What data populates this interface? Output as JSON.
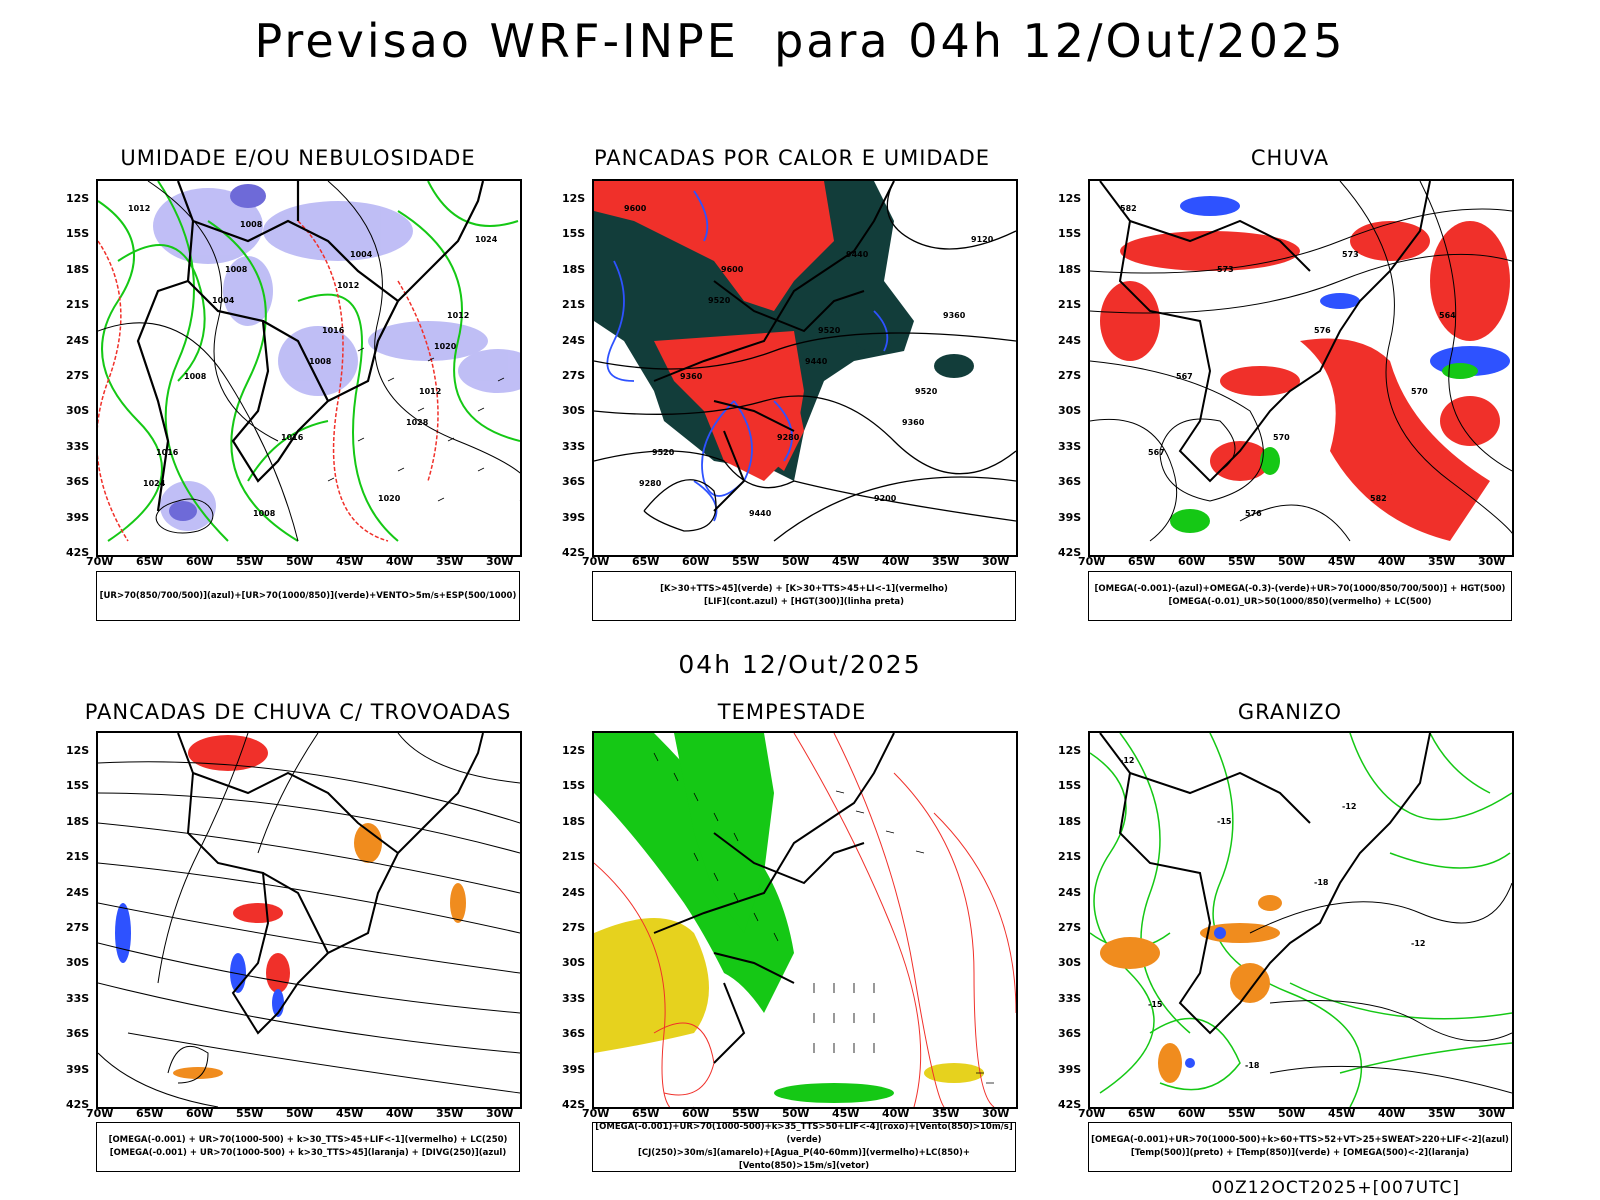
{
  "header": {
    "title": "Previsao WRF-INPE  para 04h 12/Out/2025"
  },
  "mid_label": "04h 12/Out/2025",
  "footer": {
    "code": "00Z12OCT2025+[007UTC]"
  },
  "axes": {
    "lat_labels": [
      "12S",
      "15S",
      "18S",
      "21S",
      "24S",
      "27S",
      "30S",
      "33S",
      "36S",
      "39S",
      "42S"
    ],
    "lon_labels": [
      "70W",
      "65W",
      "60W",
      "55W",
      "50W",
      "45W",
      "40W",
      "35W",
      "30W"
    ]
  },
  "panels": [
    {
      "id": "umidade",
      "title": "UMIDADE E/OU NEBULOSIDADE",
      "legend": [
        "[UR>70(850/700/500)](azul)+[UR>70(1000/850)](verde)+VENTO>5m/s+ESP(500/1000)"
      ],
      "contour_labels": [
        "1012",
        "1008",
        "1016",
        "1012",
        "1016",
        "1008",
        "1004",
        "1012",
        "1008",
        "1016",
        "1020",
        "1024",
        "1004",
        "1008",
        "1028",
        "1024",
        "1008",
        "1012",
        "1020"
      ]
    },
    {
      "id": "pancadas_calor",
      "title": "PANCADAS POR CALOR E UMIDADE",
      "legend": [
        "[K>30+TTS>45](verde) + [K>30+TTS>45+LI<-1](vermelho)",
        "[LIF](cont.azul) + [HGT(300)](linha preta)"
      ],
      "contour_labels": [
        "9600",
        "9600",
        "9520",
        "9520",
        "9520",
        "9440",
        "9440",
        "9360",
        "9360",
        "9280",
        "9200",
        "9120",
        "9520",
        "9440",
        "9360",
        "9280"
      ]
    },
    {
      "id": "chuva",
      "title": "CHUVA",
      "legend": [
        "[OMEGA(-0.001)-(azul)+OMEGA(-0.3)-(verde)+UR>70(1000/850/700/500)] + HGT(500)",
        "[OMEGA(-0.01)_UR>50(1000/850)(vermelho) + LC(500)"
      ],
      "contour_labels": [
        "582",
        "573",
        "576",
        "570",
        "567",
        "576",
        "573",
        "564",
        "567",
        "570",
        "582"
      ]
    },
    {
      "id": "trovoadas",
      "title": "PANCADAS DE CHUVA C/ TROVOADAS",
      "legend": [
        "[OMEGA(-0.001) + UR>70(1000-500) + k>30_TTS>45+LIF<-1](vermelho) + LC(250)",
        "[OMEGA(-0.001) + UR>70(1000-500) + k>30_TTS>45](laranja) + [DIVG(250)](azul)"
      ],
      "contour_labels": []
    },
    {
      "id": "tempestade",
      "title": "TEMPESTADE",
      "legend": [
        "[OMEGA(-0.001)+UR>70(1000-500)+k>35_TTS>50+LIF<-4](roxo)+[Vento(850)>10m/s](verde)",
        "[CJ(250)>30m/s](amarelo)+[Agua_P(40-60mm)](vermelho)+LC(850)+[Vento(850)>15m/s](vetor)"
      ],
      "contour_labels": []
    },
    {
      "id": "granizo",
      "title": "GRANIZO",
      "legend": [
        "[OMEGA(-0.001)+UR>70(1000-500)+k>60+TTS>52+VT>25+SWEAT>220+LIF<-2](azul)",
        "[Temp(500)](preto) + [Temp(850)](verde) + [OMEGA(500)<-2](laranja)"
      ],
      "contour_labels": [
        "-12",
        "-15",
        "-18",
        "-12",
        "-15",
        "-18",
        "-12"
      ]
    }
  ],
  "colors": {
    "red": "#f0302a",
    "green": "#15c815",
    "blue": "#2e52ff",
    "lightblue": "#b9b7f5",
    "darkteal": "#123d3a",
    "orange": "#f08c1e",
    "yellow": "#e6d21e"
  }
}
